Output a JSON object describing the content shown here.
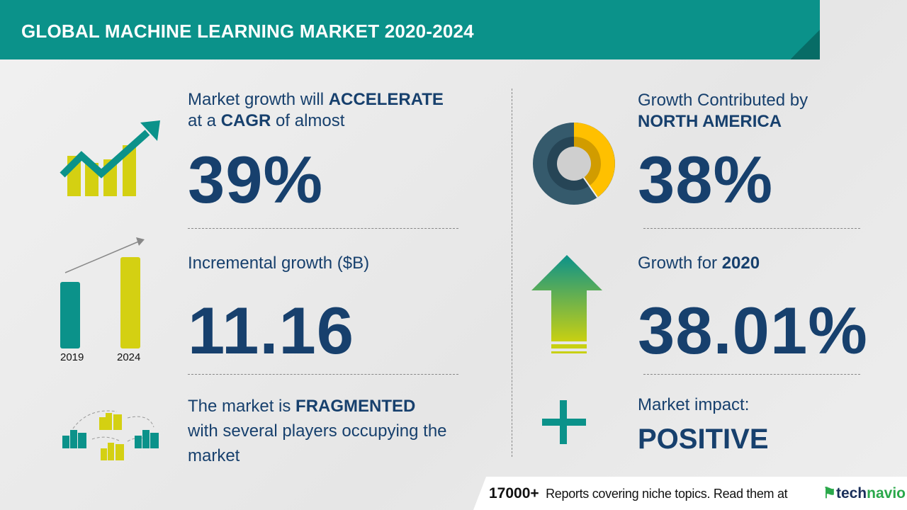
{
  "header": {
    "title": "GLOBAL MACHINE LEARNING MARKET 2020-2024"
  },
  "left": {
    "cagr": {
      "line1_pre": "Market growth will ",
      "line1_bold": "ACCELERATE",
      "line2_pre": "at a ",
      "line2_bold": "CAGR",
      "line2_post": " of almost",
      "value": "39%"
    },
    "incremental": {
      "label": "Incremental growth ($B)",
      "value": "11.16",
      "years": [
        "2019",
        "2024"
      ]
    },
    "market": {
      "line1_pre": "The market is ",
      "line1_bold": "FRAGMENTED",
      "line2": "with several players occupying the",
      "line3": "market"
    }
  },
  "right": {
    "region": {
      "line1": "Growth Contributed by",
      "line2": "NORTH AMERICA",
      "value": "38%",
      "share": 0.38
    },
    "yoy": {
      "label_pre": "Growth for ",
      "label_bold": "2020",
      "value": "38.01%"
    },
    "impact": {
      "label": "Market impact:",
      "value": "POSITIVE"
    }
  },
  "footer": {
    "count": "17000+",
    "text": "Reports covering niche topics. Read them at",
    "logo_a": "tech",
    "logo_b": "navio"
  },
  "colors": {
    "teal": "#0b928a",
    "navy": "#17406d",
    "lime": "#d4d012",
    "yellow": "#ffc000",
    "slate": "#355a6c"
  }
}
